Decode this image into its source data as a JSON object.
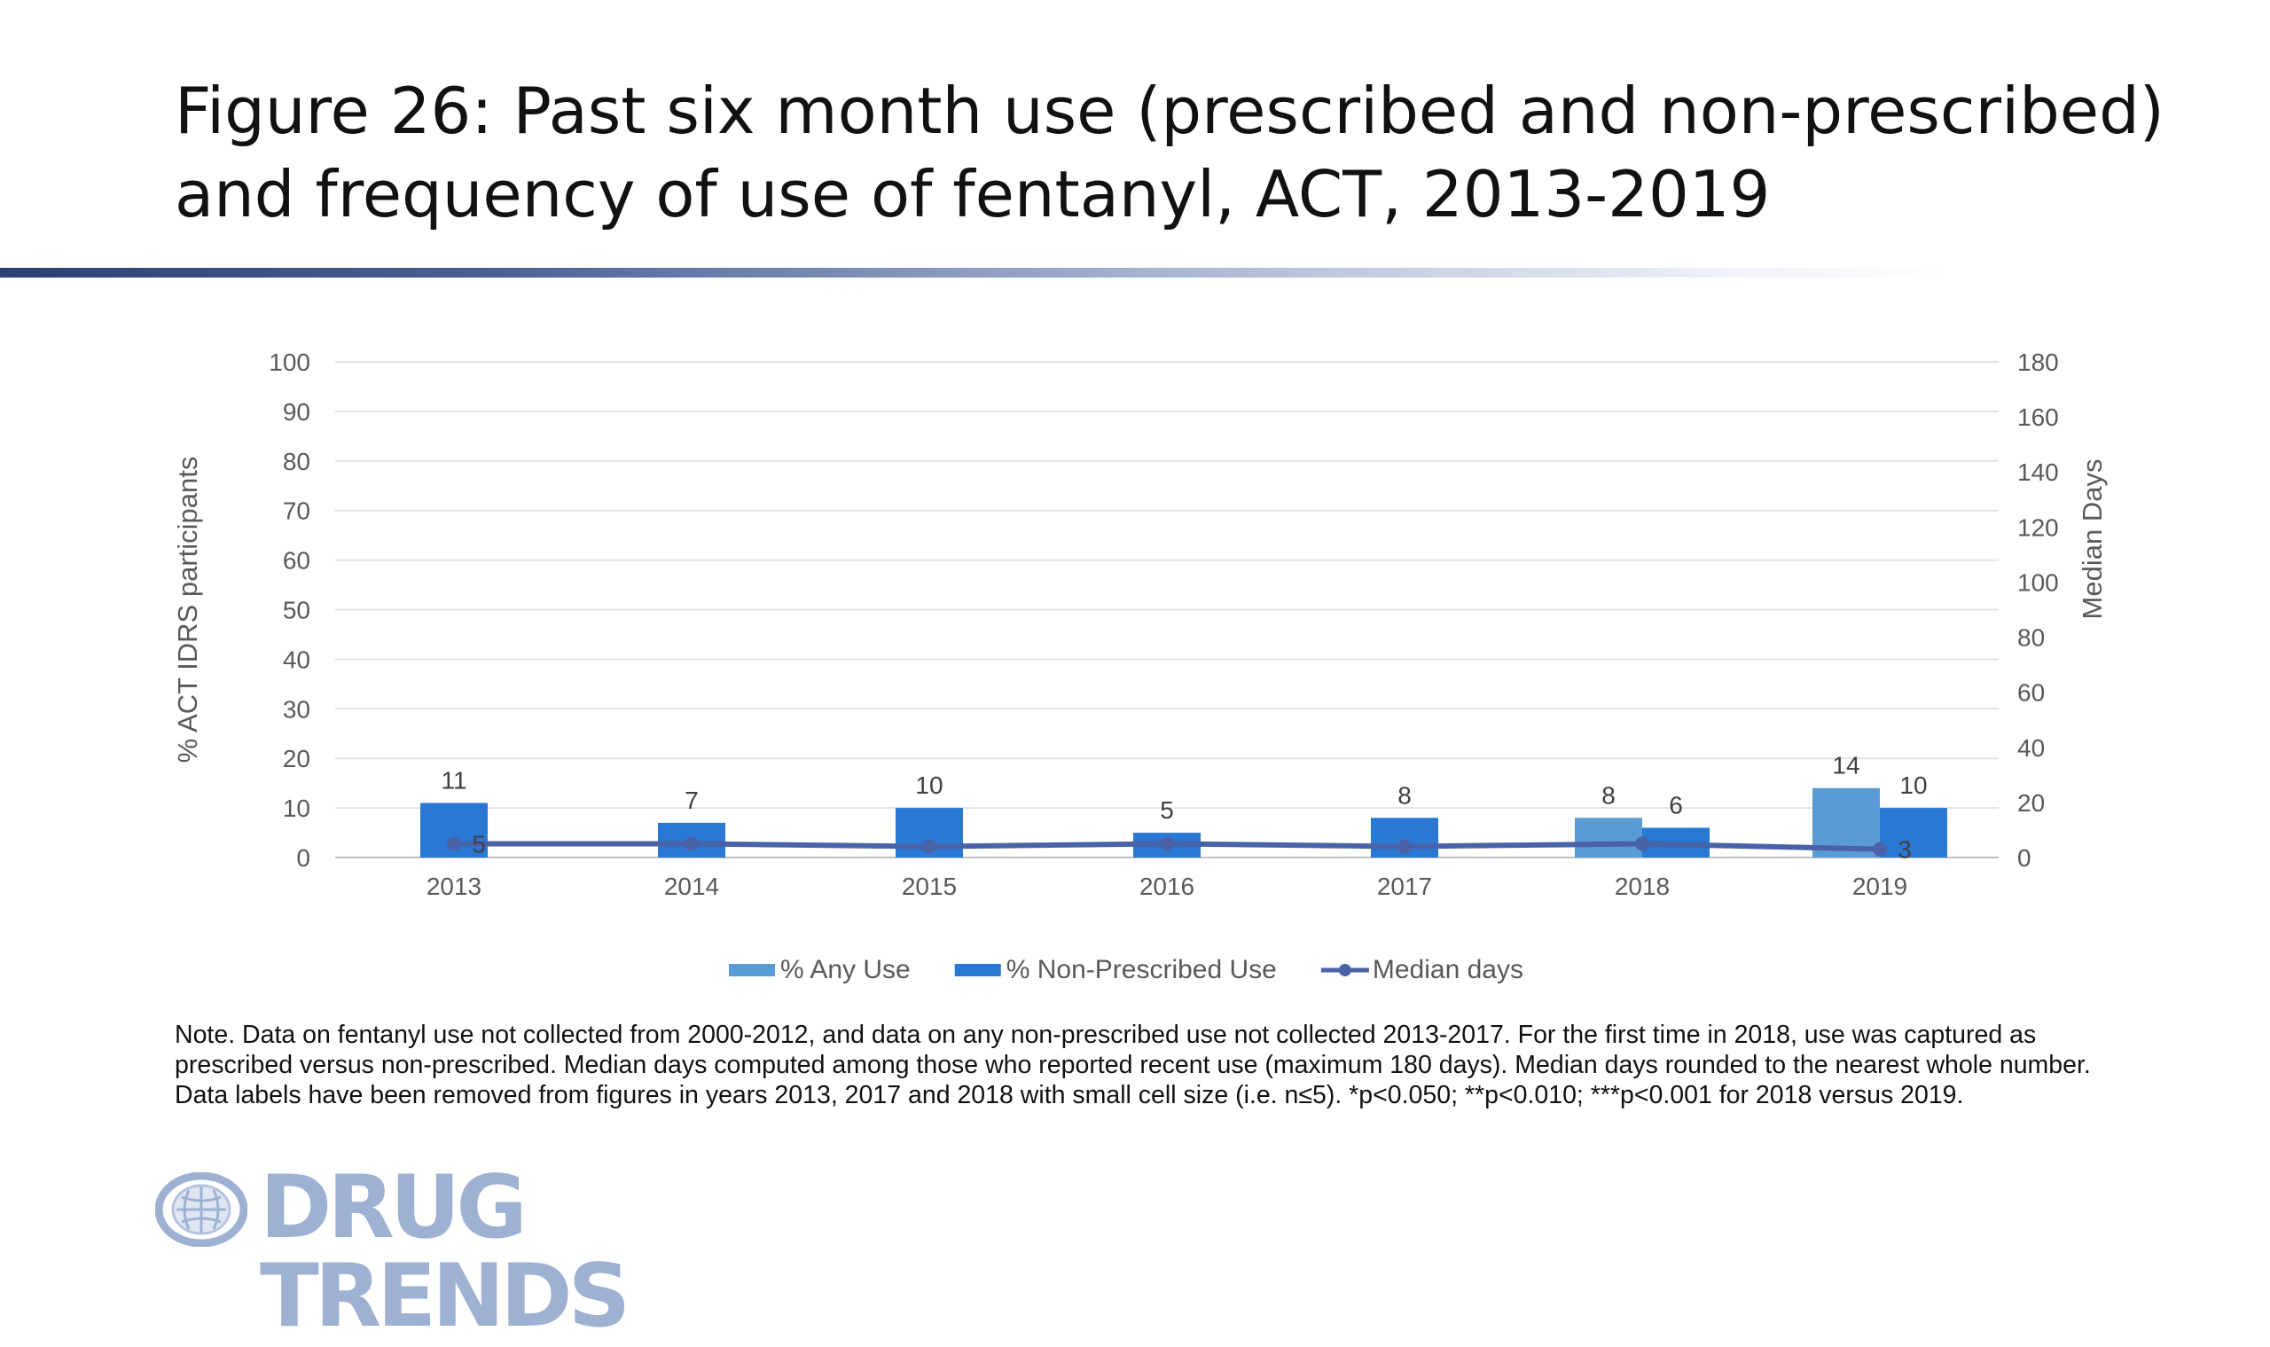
{
  "title": {
    "line1": "Figure 26: Past six month use (prescribed and non-prescribed)",
    "line2": "and frequency of use of fentanyl, ACT, 2013-2019"
  },
  "chart_data": {
    "type": "bar",
    "categories": [
      "2013",
      "2014",
      "2015",
      "2016",
      "2017",
      "2018",
      "2019"
    ],
    "ylabel": "% ACT IDRS participants",
    "y2label": "Median Days",
    "ylim": [
      0,
      100
    ],
    "y2lim": [
      0,
      180
    ],
    "yticks": [
      0,
      10,
      20,
      30,
      40,
      50,
      60,
      70,
      80,
      90,
      100
    ],
    "y2ticks": [
      0,
      20,
      40,
      60,
      80,
      100,
      120,
      140,
      160,
      180
    ],
    "grid": true,
    "legend_position": "bottom",
    "series": [
      {
        "name": "% Any Use",
        "kind": "bar",
        "axis": "left",
        "color": "#5b9bd5",
        "values": [
          null,
          null,
          null,
          null,
          null,
          8,
          14
        ],
        "labels": [
          "",
          "",
          "",
          "",
          "",
          "8",
          "14"
        ]
      },
      {
        "name": "% Non-Prescribed Use",
        "kind": "bar",
        "axis": "left",
        "color": "#2878d4",
        "values": [
          11,
          7,
          10,
          5,
          8,
          6,
          10
        ],
        "labels": [
          "11",
          "7",
          "10",
          "5",
          "8",
          "6",
          "10"
        ]
      },
      {
        "name": "Median days",
        "kind": "line",
        "axis": "right",
        "color": "#4a62a8",
        "values": [
          5,
          5,
          4,
          5,
          4,
          5,
          3
        ],
        "labels": [
          "5",
          "",
          "",
          "",
          "",
          "",
          "3"
        ]
      }
    ]
  },
  "note": "Note. Data on fentanyl use not collected from 2000-2012, and data on any non-prescribed use not collected 2013-2017. For the first time in 2018, use was captured as prescribed versus non-prescribed.  Median days computed among those who reported recent use (maximum 180 days). Median days rounded to the nearest whole number. Data labels have been removed from figures in years 2013, 2017 and 2018 with small cell size (i.e. n≤5). *p<0.050; **p<0.010; ***p<0.001 for 2018 versus 2019.",
  "logo": {
    "text": "DRUG TRENDS",
    "icon": "globe-icon",
    "color": "#9fb1d3"
  }
}
